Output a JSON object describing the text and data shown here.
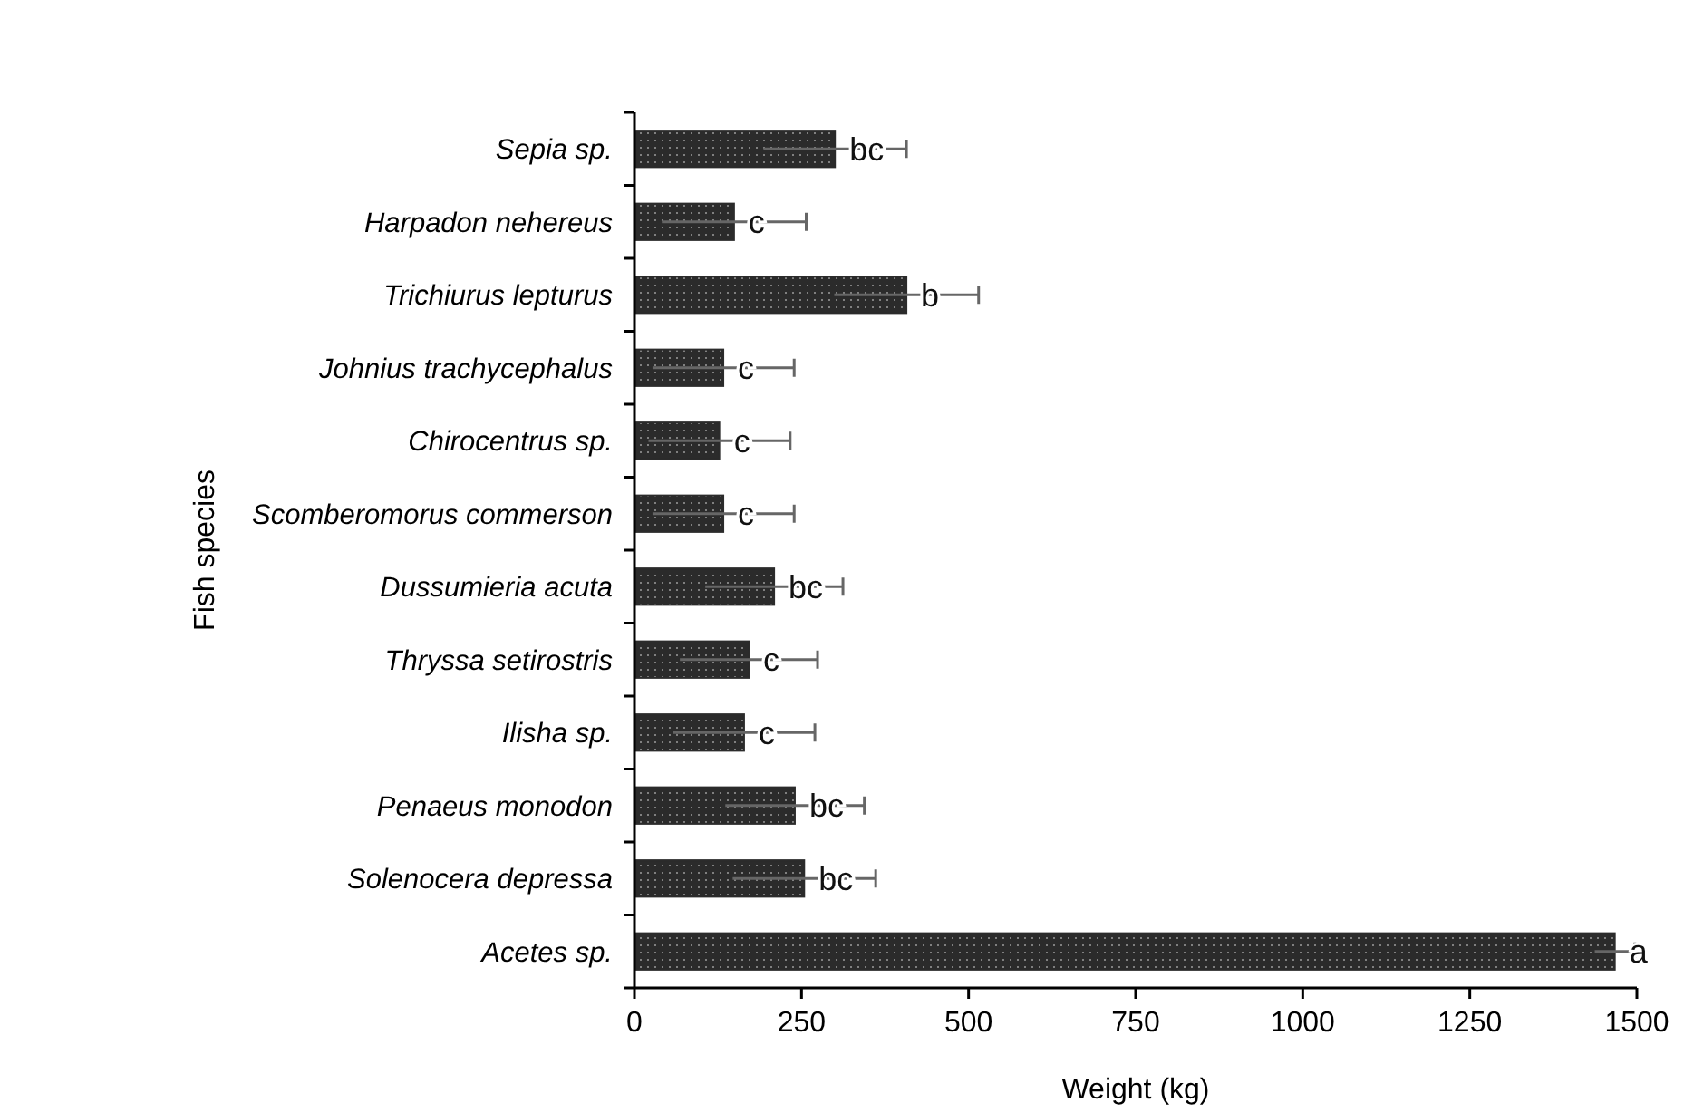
{
  "chart_data": {
    "type": "bar",
    "orientation": "horizontal",
    "xlabel": "Weight (kg)",
    "ylabel": "Fish species",
    "categories": [
      "Sepia sp.",
      "Harpadon nehereus",
      "Trichiurus lepturus",
      "Johnius trachycephalus",
      "Chirocentrus sp.",
      "Scomberomorus commerson",
      "Dussumieria acuta",
      "Thryssa setirostris",
      "Ilisha sp.",
      "Penaeus monodon",
      "Solenocera depressa",
      "Acetes sp."
    ],
    "values": [
      300,
      149,
      407,
      133,
      127,
      133,
      209,
      171,
      164,
      240,
      254,
      1467
    ],
    "errors": [
      107,
      108,
      108,
      106,
      106,
      106,
      103,
      103,
      106,
      104,
      107,
      30
    ],
    "color": "#2b2b2b",
    "xlim": [
      0,
      1500
    ],
    "xticks": [
      0,
      250,
      500,
      750,
      1000,
      1250,
      1500
    ],
    "grid": false,
    "annotations": [
      {
        "text": "bc",
        "x": 300,
        "y": "Sepia sp."
      },
      {
        "text": "c",
        "x": 149,
        "y": "Harpadon nehereus"
      },
      {
        "text": "b",
        "x": 407,
        "y": "Trichiurus lepturus"
      },
      {
        "text": "c",
        "x": 133,
        "y": "Johnius trachycephalus"
      },
      {
        "text": "c",
        "x": 127,
        "y": "Chirocentrus sp."
      },
      {
        "text": "c",
        "x": 133,
        "y": "Scomberomorus commerson"
      },
      {
        "text": "bc",
        "x": 209,
        "y": "Dussumieria acuta"
      },
      {
        "text": "c",
        "x": 171,
        "y": "Thryssa setirostris"
      },
      {
        "text": "c",
        "x": 164,
        "y": "Ilisha sp."
      },
      {
        "text": "bc",
        "x": 240,
        "y": "Penaeus monodon"
      },
      {
        "text": "bc",
        "x": 254,
        "y": "Solenocera depressa"
      },
      {
        "text": "a",
        "x": 1467,
        "y": "Acetes sp."
      }
    ]
  }
}
